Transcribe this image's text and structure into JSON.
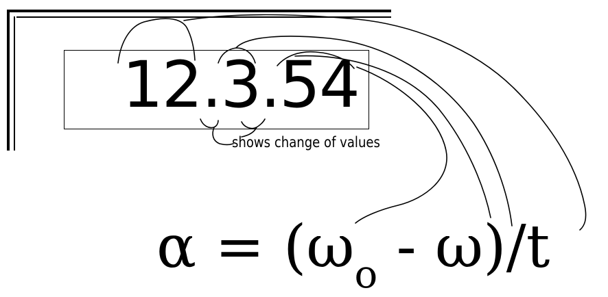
{
  "readout": {
    "value": "12.3.54"
  },
  "annotation": {
    "text": "shows change of values"
  },
  "formula": {
    "alpha": "α",
    "equals": "=",
    "open_paren": "(",
    "omega0": "ω",
    "omega0_sub": "o",
    "minus": "-",
    "omega": "ω",
    "close_paren": ")",
    "slash": "/",
    "t": "t"
  }
}
